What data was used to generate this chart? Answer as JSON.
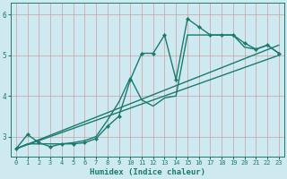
{
  "xlabel": "Humidex (Indice chaleur)",
  "background_color": "#ceeaf0",
  "grid_color": "#c8a0a0",
  "line_color": "#1a7a6e",
  "xlim": [
    -0.5,
    23.5
  ],
  "ylim": [
    2.5,
    6.3
  ],
  "yticks": [
    3,
    4,
    5,
    6
  ],
  "xticks": [
    0,
    1,
    2,
    3,
    4,
    5,
    6,
    7,
    8,
    9,
    10,
    11,
    12,
    13,
    14,
    15,
    16,
    17,
    18,
    19,
    20,
    21,
    22,
    23
  ],
  "lines": [
    {
      "x": [
        0,
        1,
        2,
        3,
        4,
        5,
        6,
        7,
        8,
        9,
        10,
        11,
        12,
        13,
        14,
        15,
        16,
        17,
        18,
        19,
        20,
        21,
        22,
        23
      ],
      "y": [
        2.7,
        3.05,
        2.85,
        2.75,
        2.82,
        2.82,
        2.85,
        2.95,
        3.25,
        3.5,
        4.4,
        5.05,
        5.05,
        5.5,
        4.4,
        5.9,
        5.7,
        5.5,
        5.5,
        5.5,
        5.3,
        5.15,
        5.25,
        5.05
      ],
      "has_markers": true,
      "linewidth": 1.0
    },
    {
      "x": [
        0,
        1,
        2,
        3,
        4,
        5,
        6,
        7,
        8,
        9,
        10,
        11,
        12,
        13,
        14,
        15,
        16,
        17,
        18,
        19,
        20,
        21,
        22,
        23
      ],
      "y": [
        2.7,
        2.82,
        2.82,
        2.82,
        2.82,
        2.85,
        2.9,
        3.0,
        3.4,
        3.85,
        4.45,
        3.9,
        3.75,
        3.95,
        4.0,
        5.5,
        5.5,
        5.5,
        5.5,
        5.5,
        5.2,
        5.15,
        5.25,
        5.05
      ],
      "has_markers": false,
      "linewidth": 1.0
    },
    {
      "x": [
        0,
        23
      ],
      "y": [
        2.7,
        5.25
      ],
      "has_markers": false,
      "linewidth": 1.0
    },
    {
      "x": [
        0,
        23
      ],
      "y": [
        2.7,
        5.0
      ],
      "has_markers": false,
      "linewidth": 1.0
    }
  ]
}
